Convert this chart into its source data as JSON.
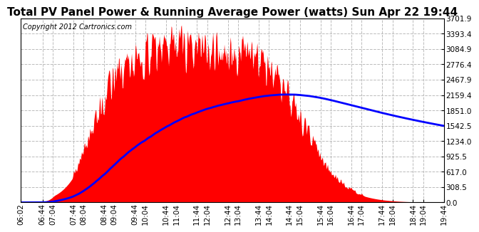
{
  "title": "Total PV Panel Power & Running Average Power (watts) Sun Apr 22 19:44",
  "copyright": "Copyright 2012 Cartronics.com",
  "y_max": 3701.9,
  "y_ticks": [
    0.0,
    308.5,
    617.0,
    925.5,
    1234.0,
    1542.5,
    1851.0,
    2159.4,
    2467.9,
    2776.4,
    3084.9,
    3393.4,
    3701.9
  ],
  "fill_color": "#ff0000",
  "avg_color": "#0000ff",
  "background_color": "#ffffff",
  "grid_color": "#bbbbbb",
  "title_fontsize": 11,
  "copyright_fontsize": 7
}
